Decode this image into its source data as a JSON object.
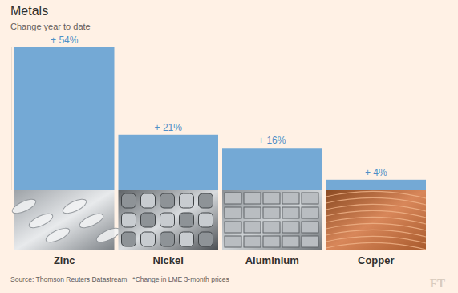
{
  "chart_data": {
    "type": "bar",
    "title": "Metals",
    "subtitle": "Change year to date",
    "categories": [
      "Zinc",
      "Nickel",
      "Aluminium",
      "Copper"
    ],
    "values": [
      54,
      21,
      16,
      4
    ],
    "value_labels": [
      "+ 54%",
      "+ 21%",
      "+ 16%",
      "+ 4%"
    ],
    "color": "#74a9d5",
    "ylim": [
      0,
      54
    ],
    "data_labels": true,
    "tick_labels": false,
    "grid": false,
    "source": "Source: Thomson Reuters Datastream",
    "note": "*Change in LME 3-month prices",
    "logo": "FT"
  }
}
